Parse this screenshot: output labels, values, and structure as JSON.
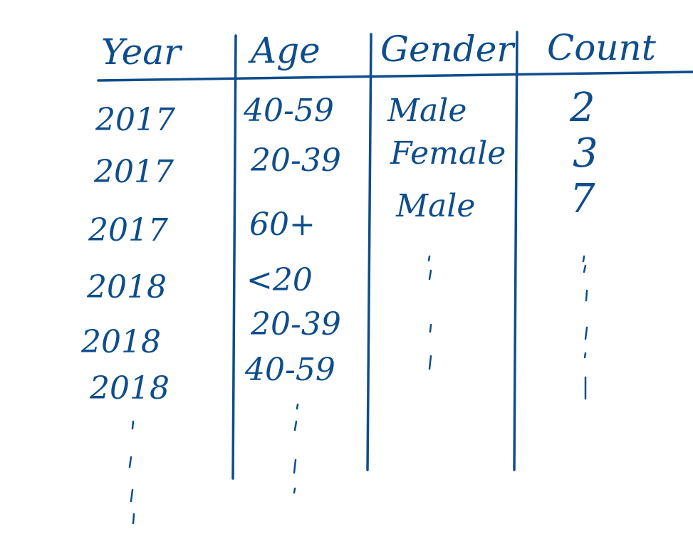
{
  "table": {
    "headers": [
      "Year",
      "Age",
      "Gender",
      "Count"
    ],
    "rows": [
      [
        "2017",
        "40-59",
        "Male",
        "2"
      ],
      [
        "2017",
        "20-39",
        "Female",
        "3"
      ],
      [
        "2017",
        "60+",
        "Male",
        "7"
      ],
      [
        "2018",
        "<20",
        "",
        ""
      ],
      [
        "2018",
        "20-39",
        "",
        ""
      ],
      [
        "2018",
        "40-59",
        "",
        ""
      ]
    ]
  },
  "ink_color": "#0e4d8c"
}
